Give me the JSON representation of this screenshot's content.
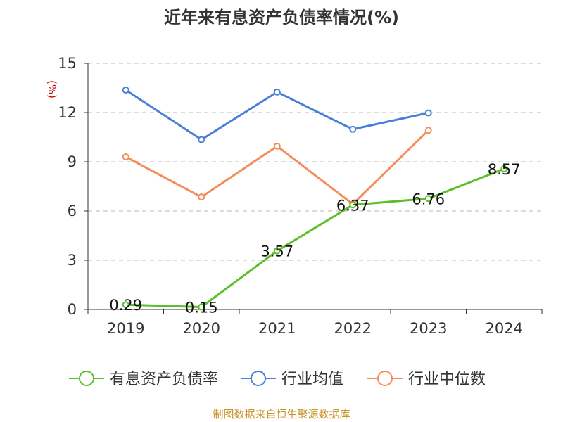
{
  "chart_data": {
    "type": "line",
    "title": "近年来有息资产负债率情况(%)",
    "ylabel": "(%)",
    "categories": [
      "2019",
      "2020",
      "2021",
      "2022",
      "2023",
      "2024"
    ],
    "ylim": [
      0,
      15
    ],
    "yticks": [
      0,
      3,
      6,
      9,
      12,
      15
    ],
    "grid": true,
    "legend_position": "bottom",
    "series": [
      {
        "name": "有息资产负债率",
        "color": "#5cbf2a",
        "values": [
          0.29,
          0.15,
          3.57,
          6.37,
          6.76,
          8.57
        ],
        "labels": [
          "0.29",
          "0.15",
          "3.57",
          "6.37",
          "6.76",
          "8.57"
        ]
      },
      {
        "name": "行业均值",
        "color": "#4a7fd6",
        "values": [
          13.37,
          10.35,
          13.25,
          10.98,
          11.98,
          null
        ]
      },
      {
        "name": "行业中位数",
        "color": "#f58d5a",
        "values": [
          9.3,
          6.85,
          9.95,
          6.42,
          10.92,
          null
        ]
      }
    ]
  },
  "source": "制图数据来自恒生聚源数据库"
}
